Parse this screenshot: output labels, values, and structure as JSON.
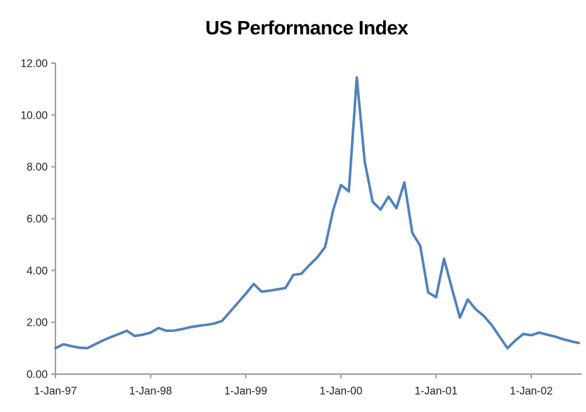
{
  "chart_data": {
    "type": "line",
    "title": "US Performance Index",
    "xlabel": "",
    "ylabel": "",
    "ylim": [
      0,
      12
    ],
    "y_ticks": [
      0,
      2,
      4,
      6,
      8,
      10,
      12
    ],
    "y_tick_labels": [
      "0.00",
      "2.00",
      "4.00",
      "6.00",
      "8.00",
      "10.00",
      "12.00"
    ],
    "x_tick_labels": [
      "1-Jan-97",
      "1-Jan-98",
      "1-Jan-99",
      "1-Jan-00",
      "1-Jan-01",
      "1-Jan-02"
    ],
    "x_tick_month_indexes": [
      0,
      12,
      24,
      36,
      48,
      60
    ],
    "x_start_label": "1-Jan-97",
    "x_interval": "monthly",
    "grid": false,
    "legend": "none",
    "series": [
      {
        "name": "US Performance Index",
        "color": "#4F81BD",
        "values": [
          1.0,
          1.15,
          1.08,
          1.02,
          1.0,
          1.15,
          1.3,
          1.43,
          1.55,
          1.67,
          1.47,
          1.52,
          1.6,
          1.78,
          1.67,
          1.68,
          1.74,
          1.81,
          1.86,
          1.9,
          1.95,
          2.05,
          2.4,
          2.75,
          3.1,
          3.48,
          3.18,
          3.22,
          3.27,
          3.32,
          3.83,
          3.87,
          4.2,
          4.5,
          4.9,
          6.3,
          7.3,
          7.05,
          11.45,
          8.2,
          6.65,
          6.35,
          6.85,
          6.4,
          7.4,
          5.45,
          4.95,
          3.15,
          2.97,
          4.45,
          3.3,
          2.18,
          2.88,
          2.5,
          2.25,
          1.9,
          1.45,
          1.0,
          1.3,
          1.55,
          1.5,
          1.6,
          1.52,
          1.45,
          1.35,
          1.27,
          1.2
        ]
      }
    ]
  },
  "colors": {
    "line": "#4F81BD",
    "axis": "#9C9C9C",
    "tick_text": "#1F1F1F",
    "background": "#FFFFFF"
  }
}
